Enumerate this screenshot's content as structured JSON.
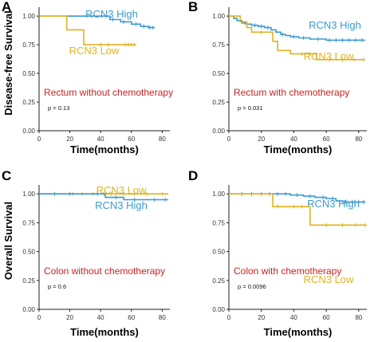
{
  "figure": {
    "ylabel_top": "Disease-free Survival",
    "ylabel_bottom": "Overall Survival"
  },
  "colors": {
    "high": "#3a9bd0",
    "low": "#e0b323",
    "annotation": "#cc2222",
    "axis": "#222222"
  },
  "chart_data": [
    {
      "panel": "A",
      "type": "line",
      "xlabel": "Time(months)",
      "xlim": [
        0,
        85
      ],
      "ylim": [
        0,
        1.05
      ],
      "xticks": [
        0,
        20,
        40,
        60,
        80
      ],
      "yticks": [
        "0.00",
        "0.25",
        "0.50",
        "0.75",
        "1.00"
      ],
      "annotation": "Rectum without chemotherapy",
      "pvalue": "p = 0.13",
      "series": [
        {
          "name": "RCN3 High",
          "color_key": "high",
          "steps": [
            [
              0,
              1.0
            ],
            [
              46,
              1.0
            ],
            [
              46,
              0.97
            ],
            [
              53,
              0.97
            ],
            [
              53,
              0.95
            ],
            [
              60,
              0.95
            ],
            [
              60,
              0.93
            ],
            [
              66,
              0.93
            ],
            [
              66,
              0.91
            ],
            [
              71,
              0.91
            ],
            [
              71,
              0.9
            ],
            [
              75,
              0.9
            ]
          ],
          "censors": [
            [
              48,
              0.97
            ],
            [
              55,
              0.95
            ],
            [
              63,
              0.93
            ],
            [
              68,
              0.91
            ],
            [
              72,
              0.9
            ],
            [
              74,
              0.9
            ]
          ]
        },
        {
          "name": "RCN3 Low",
          "color_key": "low",
          "steps": [
            [
              0,
              1.0
            ],
            [
              18,
              1.0
            ],
            [
              18,
              0.88
            ],
            [
              29,
              0.88
            ],
            [
              29,
              0.75
            ],
            [
              62,
              0.75
            ]
          ],
          "censors": [
            [
              40,
              0.75
            ],
            [
              45,
              0.75
            ],
            [
              56,
              0.75
            ],
            [
              58,
              0.75
            ],
            [
              60,
              0.75
            ],
            [
              62,
              0.75
            ]
          ]
        }
      ]
    },
    {
      "panel": "B",
      "type": "line",
      "xlabel": "Time(months)",
      "xlim": [
        0,
        85
      ],
      "ylim": [
        0,
        1.05
      ],
      "xticks": [
        0,
        20,
        40,
        60,
        80
      ],
      "yticks": [
        "0.00",
        "0.25",
        "0.50",
        "0.75",
        "1.00"
      ],
      "annotation": "Rectum with chemotherapy",
      "pvalue": "p = 0.031",
      "series": [
        {
          "name": "RCN3 High",
          "color_key": "high",
          "steps": [
            [
              0,
              1.0
            ],
            [
              3,
              1.0
            ],
            [
              3,
              0.98
            ],
            [
              5,
              0.98
            ],
            [
              5,
              0.96
            ],
            [
              8,
              0.96
            ],
            [
              8,
              0.94
            ],
            [
              11,
              0.94
            ],
            [
              11,
              0.93
            ],
            [
              14,
              0.93
            ],
            [
              14,
              0.92
            ],
            [
              18,
              0.92
            ],
            [
              18,
              0.91
            ],
            [
              22,
              0.91
            ],
            [
              22,
              0.9
            ],
            [
              26,
              0.9
            ],
            [
              26,
              0.88
            ],
            [
              29,
              0.88
            ],
            [
              29,
              0.86
            ],
            [
              32,
              0.86
            ],
            [
              32,
              0.84
            ],
            [
              35,
              0.84
            ],
            [
              35,
              0.83
            ],
            [
              38,
              0.83
            ],
            [
              38,
              0.82
            ],
            [
              43,
              0.82
            ],
            [
              43,
              0.81
            ],
            [
              50,
              0.81
            ],
            [
              50,
              0.8
            ],
            [
              60,
              0.8
            ],
            [
              60,
              0.79
            ],
            [
              84,
              0.79
            ]
          ],
          "censors": [
            [
              10,
              0.94
            ],
            [
              16,
              0.92
            ],
            [
              20,
              0.91
            ],
            [
              24,
              0.9
            ],
            [
              33,
              0.84
            ],
            [
              40,
              0.82
            ],
            [
              46,
              0.81
            ],
            [
              55,
              0.8
            ],
            [
              62,
              0.79
            ],
            [
              66,
              0.79
            ],
            [
              70,
              0.79
            ],
            [
              74,
              0.79
            ],
            [
              78,
              0.79
            ],
            [
              82,
              0.79
            ]
          ]
        },
        {
          "name": "RCN3 Low",
          "color_key": "low",
          "steps": [
            [
              0,
              1.0
            ],
            [
              7,
              1.0
            ],
            [
              7,
              0.95
            ],
            [
              11,
              0.95
            ],
            [
              11,
              0.9
            ],
            [
              14,
              0.9
            ],
            [
              14,
              0.86
            ],
            [
              27,
              0.86
            ],
            [
              27,
              0.78
            ],
            [
              30,
              0.78
            ],
            [
              30,
              0.7
            ],
            [
              38,
              0.7
            ],
            [
              38,
              0.67
            ],
            [
              54,
              0.67
            ],
            [
              54,
              0.62
            ],
            [
              83,
              0.62
            ]
          ],
          "censors": [
            [
              20,
              0.86
            ],
            [
              45,
              0.67
            ],
            [
              50,
              0.67
            ],
            [
              62,
              0.62
            ],
            [
              70,
              0.62
            ],
            [
              77,
              0.62
            ],
            [
              83,
              0.62
            ]
          ]
        }
      ]
    },
    {
      "panel": "C",
      "type": "line",
      "xlabel": "Time(months)",
      "xlim": [
        0,
        85
      ],
      "ylim": [
        0,
        1.05
      ],
      "xticks": [
        0,
        20,
        40,
        60,
        80
      ],
      "yticks": [
        "0.00",
        "0.25",
        "0.50",
        "0.75",
        "1.00"
      ],
      "annotation": "Colon without chemotherapy",
      "pvalue": "p = 0.6",
      "series": [
        {
          "name": "RCN3 Low",
          "color_key": "low",
          "steps": [
            [
              0,
              1.0
            ],
            [
              84,
              1.0
            ]
          ],
          "censors": [
            [
              22,
              1.0
            ],
            [
              28,
              1.0
            ],
            [
              35,
              1.0
            ],
            [
              42,
              1.0
            ],
            [
              47,
              1.0
            ],
            [
              55,
              1.0
            ],
            [
              62,
              1.0
            ],
            [
              70,
              1.0
            ],
            [
              80,
              1.0
            ]
          ]
        },
        {
          "name": "RCN3 High",
          "color_key": "high",
          "steps": [
            [
              0,
              1.0
            ],
            [
              43,
              1.0
            ],
            [
              43,
              0.97
            ],
            [
              55,
              0.97
            ],
            [
              55,
              0.95
            ],
            [
              84,
              0.95
            ]
          ],
          "censors": [
            [
              10,
              1.0
            ],
            [
              20,
              1.0
            ],
            [
              38,
              1.0
            ],
            [
              50,
              0.97
            ],
            [
              62,
              0.95
            ],
            [
              75,
              0.95
            ],
            [
              82,
              0.95
            ]
          ]
        }
      ]
    },
    {
      "panel": "D",
      "type": "line",
      "xlabel": "Time(months)",
      "xlim": [
        0,
        85
      ],
      "ylim": [
        0,
        1.05
      ],
      "xticks": [
        0,
        20,
        40,
        60,
        80
      ],
      "yticks": [
        "0.00",
        "0.25",
        "0.50",
        "0.75",
        "1.00"
      ],
      "annotation": "Colon with chemotherapy",
      "pvalue": "p = 0.0096",
      "series": [
        {
          "name": "RCN3 High",
          "color_key": "high",
          "steps": [
            [
              0,
              1.0
            ],
            [
              38,
              1.0
            ],
            [
              38,
              0.99
            ],
            [
              46,
              0.99
            ],
            [
              46,
              0.98
            ],
            [
              53,
              0.98
            ],
            [
              53,
              0.97
            ],
            [
              60,
              0.97
            ],
            [
              60,
              0.96
            ],
            [
              66,
              0.96
            ],
            [
              66,
              0.94
            ],
            [
              70,
              0.94
            ],
            [
              70,
              0.93
            ],
            [
              84,
              0.93
            ]
          ],
          "censors": [
            [
              8,
              1.0
            ],
            [
              14,
              1.0
            ],
            [
              20,
              1.0
            ],
            [
              25,
              1.0
            ],
            [
              30,
              1.0
            ],
            [
              35,
              1.0
            ],
            [
              42,
              0.99
            ],
            [
              50,
              0.98
            ],
            [
              58,
              0.97
            ],
            [
              64,
              0.96
            ],
            [
              72,
              0.93
            ],
            [
              76,
              0.93
            ],
            [
              80,
              0.93
            ],
            [
              83,
              0.93
            ]
          ]
        },
        {
          "name": "RCN3 Low",
          "color_key": "low",
          "steps": [
            [
              0,
              1.0
            ],
            [
              27,
              1.0
            ],
            [
              27,
              0.89
            ],
            [
              50,
              0.89
            ],
            [
              50,
              0.73
            ],
            [
              84,
              0.73
            ]
          ],
          "censors": [
            [
              30,
              0.89
            ],
            [
              40,
              0.89
            ],
            [
              45,
              0.89
            ],
            [
              60,
              0.73
            ],
            [
              70,
              0.73
            ],
            [
              78,
              0.73
            ],
            [
              84,
              0.73
            ]
          ]
        }
      ]
    }
  ]
}
